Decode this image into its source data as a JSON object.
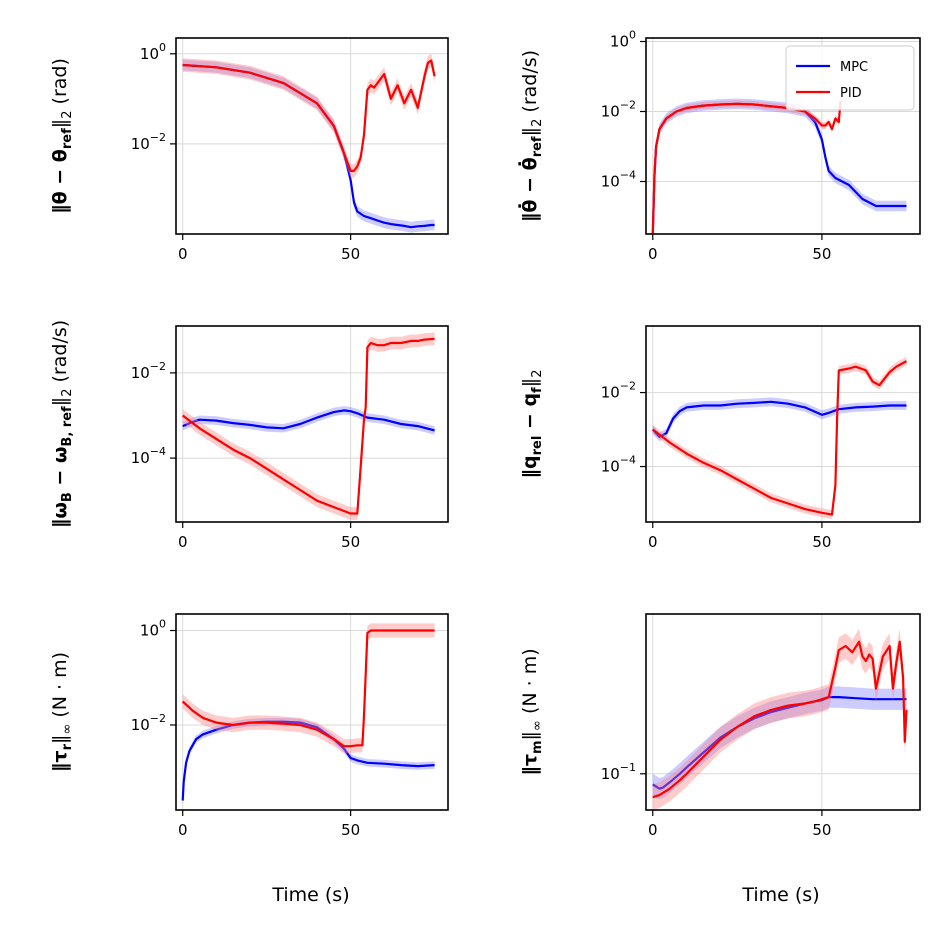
{
  "colors": {
    "mpc": "#0000ff",
    "pid": "#ff0000",
    "band_mpc": "#8080ff",
    "band_pid": "#ff8080",
    "grid": "#d9d9d9"
  },
  "legend": [
    "MPC",
    "PID"
  ],
  "chart_data": [
    {
      "id": "theta",
      "type": "line",
      "ylabel": {
        "expr": "‖θ − θ",
        "sub": "ref",
        "tail": "‖",
        "sub2": "2",
        "unit": " (rad)"
      },
      "yscale": "log",
      "ylim_exp": [
        -4.0,
        0.35
      ],
      "xlim": [
        -2,
        79
      ],
      "xticks": [
        0,
        50
      ],
      "yticks": [
        {
          "exp": 0,
          "label": "10",
          "sup": "0"
        },
        {
          "exp": -2,
          "label": "10",
          "sup": "−2"
        }
      ],
      "series": [
        {
          "name": "MPC",
          "x": [
            0,
            10,
            20,
            30,
            40,
            45,
            48,
            50,
            51,
            52,
            54,
            56,
            58,
            60,
            62,
            64,
            66,
            68,
            70,
            72,
            74,
            75
          ],
          "log10y": [
            -0.25,
            -0.3,
            -0.42,
            -0.65,
            -1.1,
            -1.6,
            -2.2,
            -2.8,
            -3.3,
            -3.5,
            -3.6,
            -3.65,
            -3.7,
            -3.75,
            -3.78,
            -3.8,
            -3.82,
            -3.85,
            -3.83,
            -3.82,
            -3.8,
            -3.8
          ],
          "band": 0.12
        },
        {
          "name": "PID",
          "x": [
            0,
            10,
            20,
            30,
            40,
            45,
            48,
            50,
            51,
            52,
            53,
            54,
            55,
            56,
            57,
            58,
            60,
            62,
            64,
            66,
            68,
            70,
            72,
            73,
            74,
            75
          ],
          "log10y": [
            -0.25,
            -0.3,
            -0.42,
            -0.65,
            -1.1,
            -1.6,
            -2.2,
            -2.6,
            -2.6,
            -2.5,
            -2.3,
            -1.8,
            -0.8,
            -0.7,
            -0.75,
            -0.65,
            -0.45,
            -1.0,
            -0.7,
            -1.1,
            -0.8,
            -1.2,
            -0.5,
            -0.2,
            -0.15,
            -0.5
          ],
          "band": 0.15
        }
      ]
    },
    {
      "id": "theta_dot",
      "type": "line",
      "ylabel": {
        "expr": "‖θ̇ − θ̇",
        "sub": "ref",
        "tail": "‖",
        "sub2": "2",
        "unit": " (rad/s)"
      },
      "yscale": "log",
      "ylim_exp": [
        -5.5,
        0.1
      ],
      "xlim": [
        -2,
        79
      ],
      "xticks": [
        0,
        50
      ],
      "yticks": [
        {
          "exp": 0,
          "label": "10",
          "sup": "0"
        },
        {
          "exp": -2,
          "label": "10",
          "sup": "−2"
        },
        {
          "exp": -4,
          "label": "10",
          "sup": "−4"
        }
      ],
      "series": [
        {
          "name": "MPC",
          "x": [
            0,
            0.5,
            1,
            2,
            4,
            7,
            10,
            15,
            20,
            25,
            30,
            35,
            40,
            45,
            48,
            50,
            51,
            52,
            54,
            56,
            58,
            60,
            62,
            64,
            66,
            68,
            70,
            72,
            75
          ],
          "log10y": [
            -5.5,
            -3.8,
            -3.0,
            -2.5,
            -2.2,
            -2.0,
            -1.9,
            -1.83,
            -1.8,
            -1.78,
            -1.8,
            -1.85,
            -1.9,
            -2.0,
            -2.3,
            -2.8,
            -3.3,
            -3.7,
            -3.9,
            -4.0,
            -4.1,
            -4.3,
            -4.5,
            -4.6,
            -4.7,
            -4.7,
            -4.7,
            -4.7,
            -4.7
          ],
          "band": 0.15
        },
        {
          "name": "PID",
          "x": [
            0,
            0.5,
            1,
            2,
            4,
            7,
            10,
            15,
            20,
            25,
            30,
            35,
            40,
            45,
            48,
            50,
            51,
            52,
            53,
            54,
            55,
            55.5
          ],
          "log10y": [
            -5.5,
            -3.8,
            -3.0,
            -2.5,
            -2.2,
            -2.0,
            -1.9,
            -1.83,
            -1.8,
            -1.78,
            -1.8,
            -1.85,
            -1.9,
            -2.0,
            -2.2,
            -2.4,
            -2.4,
            -2.3,
            -2.5,
            -2.2,
            -2.3,
            -1.7
          ],
          "band": 0.1
        }
      ],
      "legend_entries": [
        "MPC",
        "PID"
      ]
    },
    {
      "id": "omega",
      "type": "line",
      "ylabel": {
        "expr": "‖ω",
        "sub": "B",
        "mid": " − ω",
        "sub3": "B, ref",
        "tail": "‖",
        "sub2": "2",
        "unit": " (rad/s)"
      },
      "yscale": "log",
      "ylim_exp": [
        -5.5,
        -0.9
      ],
      "xlim": [
        -2,
        79
      ],
      "xticks": [
        0,
        50
      ],
      "yticks": [
        {
          "exp": -2,
          "label": "10",
          "sup": "−2"
        },
        {
          "exp": -4,
          "label": "10",
          "sup": "−4"
        }
      ],
      "series": [
        {
          "name": "MPC",
          "x": [
            0,
            3,
            5,
            10,
            15,
            20,
            25,
            30,
            35,
            40,
            45,
            48,
            50,
            52,
            55,
            60,
            65,
            70,
            75
          ],
          "log10y": [
            -3.25,
            -3.15,
            -3.1,
            -3.12,
            -3.18,
            -3.22,
            -3.28,
            -3.3,
            -3.2,
            -3.05,
            -2.92,
            -2.88,
            -2.9,
            -2.95,
            -3.05,
            -3.1,
            -3.2,
            -3.25,
            -3.35
          ],
          "band": 0.1
        },
        {
          "name": "PID",
          "x": [
            0,
            5,
            10,
            15,
            20,
            25,
            30,
            35,
            40,
            45,
            50,
            52,
            53,
            54,
            54.5,
            55,
            56,
            58,
            60,
            62,
            65,
            68,
            70,
            72,
            75
          ],
          "log10y": [
            -3.0,
            -3.3,
            -3.55,
            -3.8,
            -4.0,
            -4.25,
            -4.5,
            -4.75,
            -5.0,
            -5.15,
            -5.3,
            -5.3,
            -4.2,
            -3.1,
            -2.8,
            -1.4,
            -1.3,
            -1.35,
            -1.35,
            -1.3,
            -1.3,
            -1.25,
            -1.25,
            -1.22,
            -1.2
          ],
          "band": 0.15
        }
      ]
    },
    {
      "id": "q",
      "type": "line",
      "ylabel": {
        "expr": "‖q",
        "sub": "rel",
        "mid": " − q",
        "sub3": "f",
        "tail": "‖",
        "sub2": "2",
        "unit": ""
      },
      "yscale": "log",
      "ylim_exp": [
        -5.5,
        -0.2
      ],
      "xlim": [
        -2,
        79
      ],
      "xticks": [
        0,
        50
      ],
      "yticks": [
        {
          "exp": -2,
          "label": "10",
          "sup": "−2"
        },
        {
          "exp": -4,
          "label": "10",
          "sup": "−4"
        }
      ],
      "series": [
        {
          "name": "MPC",
          "x": [
            0,
            2,
            4,
            6,
            8,
            10,
            15,
            20,
            25,
            30,
            35,
            40,
            45,
            50,
            52,
            55,
            60,
            65,
            70,
            75
          ],
          "log10y": [
            -3.0,
            -3.2,
            -3.1,
            -2.7,
            -2.5,
            -2.4,
            -2.35,
            -2.35,
            -2.3,
            -2.28,
            -2.25,
            -2.3,
            -2.4,
            -2.6,
            -2.55,
            -2.45,
            -2.4,
            -2.38,
            -2.35,
            -2.35
          ],
          "band": 0.12
        },
        {
          "name": "PID",
          "x": [
            0,
            5,
            10,
            15,
            20,
            25,
            30,
            35,
            40,
            45,
            50,
            53,
            54,
            54.5,
            55,
            58,
            60,
            63,
            65,
            67,
            70,
            72,
            75
          ],
          "log10y": [
            -3.0,
            -3.35,
            -3.65,
            -3.9,
            -4.1,
            -4.35,
            -4.6,
            -4.85,
            -5.0,
            -5.15,
            -5.25,
            -5.3,
            -4.5,
            -2.7,
            -1.4,
            -1.35,
            -1.3,
            -1.4,
            -1.7,
            -1.8,
            -1.45,
            -1.3,
            -1.15
          ],
          "band": 0.12
        }
      ]
    },
    {
      "id": "tau_r",
      "type": "line",
      "ylabel": {
        "expr": "‖τ",
        "sub": "r",
        "tail": "‖",
        "sub2": "∞",
        "unit": " (N · m)"
      },
      "yscale": "log",
      "ylim_exp": [
        -3.8,
        0.35
      ],
      "xlim": [
        -2,
        79
      ],
      "xticks": [
        0,
        50
      ],
      "yticks": [
        {
          "exp": 0,
          "label": "10",
          "sup": "0"
        },
        {
          "exp": -2,
          "label": "10",
          "sup": "−2"
        }
      ],
      "series": [
        {
          "name": "MPC",
          "x": [
            0,
            0.3,
            1,
            2,
            4,
            6,
            10,
            15,
            20,
            25,
            30,
            35,
            40,
            45,
            48,
            50,
            52,
            55,
            60,
            65,
            70,
            75
          ],
          "log10y": [
            -3.6,
            -3.2,
            -2.8,
            -2.55,
            -2.3,
            -2.2,
            -2.1,
            -2.0,
            -1.95,
            -1.93,
            -1.93,
            -1.95,
            -2.05,
            -2.3,
            -2.5,
            -2.7,
            -2.75,
            -2.8,
            -2.82,
            -2.85,
            -2.87,
            -2.85
          ],
          "band": 0.08
        },
        {
          "name": "PID",
          "x": [
            0,
            3,
            6,
            10,
            15,
            20,
            25,
            30,
            35,
            40,
            45,
            48,
            50,
            52,
            53.5,
            54,
            55,
            56,
            60,
            65,
            70,
            75
          ],
          "log10y": [
            -1.5,
            -1.7,
            -1.85,
            -1.95,
            -2.0,
            -1.95,
            -1.95,
            -1.97,
            -2.0,
            -2.1,
            -2.3,
            -2.45,
            -2.45,
            -2.43,
            -2.43,
            -1.8,
            -0.05,
            0.0,
            0.0,
            0.0,
            0.0,
            0.0
          ],
          "band": 0.15
        }
      ]
    },
    {
      "id": "tau_m",
      "type": "line",
      "ylabel": {
        "expr": "‖τ",
        "sub": "m",
        "tail": "‖",
        "sub2": "∞",
        "unit": " (N · m)"
      },
      "yscale": "log",
      "ylim_exp": [
        -1.17,
        -0.25
      ],
      "xlim": [
        -2,
        79
      ],
      "xticks": [
        0,
        50
      ],
      "yticks": [
        {
          "exp": -1,
          "label": "10",
          "sup": "−1"
        }
      ],
      "series": [
        {
          "name": "MPC",
          "x": [
            0,
            1,
            2,
            3,
            5,
            8,
            10,
            15,
            20,
            25,
            30,
            35,
            40,
            45,
            48,
            50,
            52,
            55,
            60,
            65,
            70,
            75
          ],
          "log10y": [
            -1.05,
            -1.06,
            -1.07,
            -1.065,
            -1.04,
            -1.0,
            -0.97,
            -0.9,
            -0.83,
            -0.78,
            -0.74,
            -0.71,
            -0.69,
            -0.67,
            -0.66,
            -0.655,
            -0.64,
            -0.64,
            -0.645,
            -0.65,
            -0.65,
            -0.65
          ],
          "band": 0.05
        },
        {
          "name": "PID",
          "x": [
            0,
            2,
            5,
            8,
            10,
            15,
            20,
            25,
            30,
            35,
            40,
            45,
            48,
            50,
            52,
            54,
            55,
            57,
            59,
            61,
            62,
            63,
            64,
            65,
            66,
            68,
            70,
            71,
            72,
            73,
            74,
            74.5,
            75
          ],
          "log10y": [
            -1.11,
            -1.1,
            -1.07,
            -1.03,
            -1.0,
            -0.92,
            -0.84,
            -0.78,
            -0.73,
            -0.7,
            -0.68,
            -0.67,
            -0.66,
            -0.65,
            -0.64,
            -0.5,
            -0.42,
            -0.4,
            -0.43,
            -0.38,
            -0.45,
            -0.47,
            -0.44,
            -0.46,
            -0.6,
            -0.45,
            -0.4,
            -0.6,
            -0.48,
            -0.38,
            -0.55,
            -0.85,
            -0.7
          ],
          "band": 0.06
        }
      ]
    }
  ],
  "xlabel_text": "Time (s)"
}
